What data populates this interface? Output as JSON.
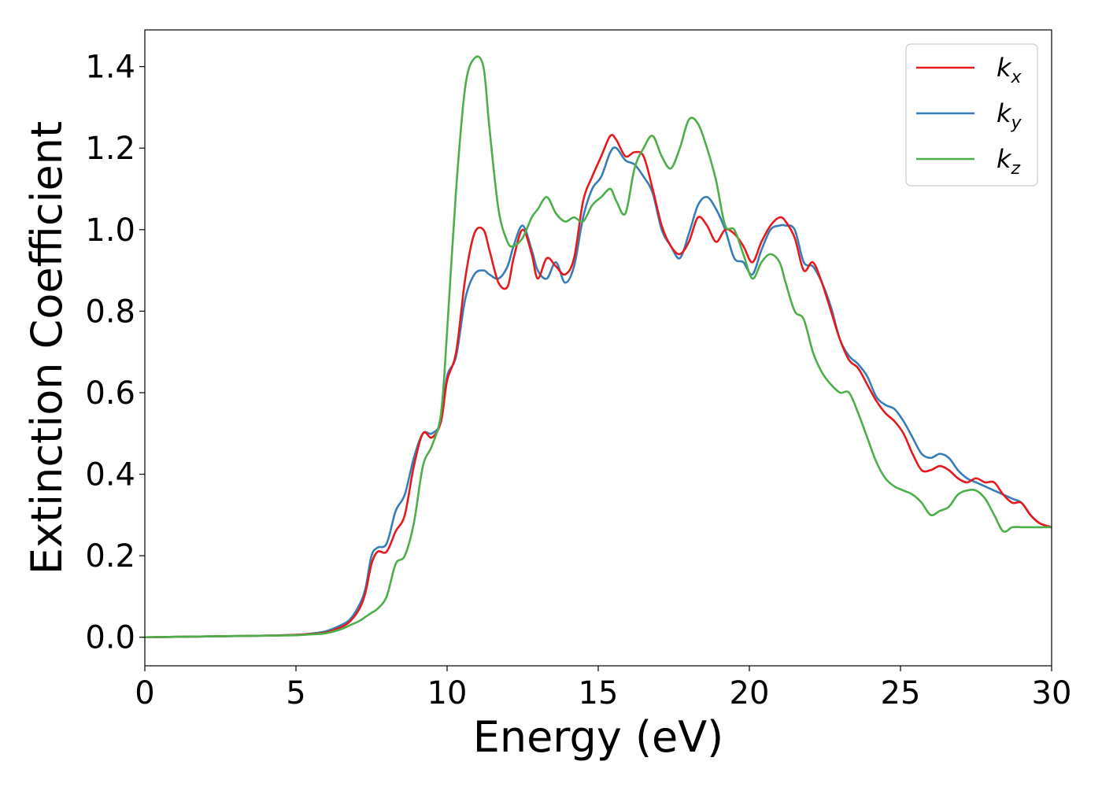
{
  "chart_data": {
    "type": "line",
    "xlabel": "Energy (eV)",
    "ylabel": "Extinction Coefficient",
    "xlim": [
      0,
      30
    ],
    "ylim": [
      -0.07,
      1.49
    ],
    "x_ticks": [
      0,
      5,
      10,
      15,
      20,
      25,
      30
    ],
    "x_tick_labels": [
      "0",
      "5",
      "10",
      "15",
      "20",
      "25",
      "30"
    ],
    "y_ticks": [
      0.0,
      0.2,
      0.4,
      0.6,
      0.8,
      1.0,
      1.2,
      1.4
    ],
    "y_tick_labels": [
      "0.0",
      "0.2",
      "0.4",
      "0.6",
      "0.8",
      "1.0",
      "1.2",
      "1.4"
    ],
    "grid": false,
    "legend_position": "top-right",
    "series": [
      {
        "name": "k",
        "subscript": "x",
        "color": "#e41a1c",
        "x": [
          0,
          1,
          2,
          3,
          4,
          5,
          5.5,
          6,
          6.5,
          6.8,
          7.1,
          7.3,
          7.5,
          7.7,
          8.0,
          8.3,
          8.6,
          8.9,
          9.2,
          9.5,
          9.8,
          10.0,
          10.3,
          10.6,
          10.9,
          11.2,
          11.4,
          11.7,
          12.0,
          12.2,
          12.5,
          12.8,
          13.0,
          13.3,
          13.6,
          13.9,
          14.2,
          14.5,
          14.8,
          15.1,
          15.4,
          15.6,
          15.9,
          16.2,
          16.5,
          16.8,
          17.1,
          17.4,
          17.7,
          18.0,
          18.3,
          18.6,
          18.9,
          19.2,
          19.5,
          19.8,
          20.1,
          20.4,
          20.7,
          21.0,
          21.2,
          21.5,
          21.8,
          22.1,
          22.4,
          22.7,
          23.0,
          23.3,
          23.6,
          23.9,
          24.2,
          24.5,
          24.8,
          25.1,
          25.4,
          25.7,
          26.0,
          26.3,
          26.6,
          26.9,
          27.2,
          27.5,
          27.8,
          28.1,
          28.4,
          28.7,
          29.0,
          29.3,
          29.6,
          30.0
        ],
        "values": [
          0.0,
          0.001,
          0.002,
          0.003,
          0.004,
          0.006,
          0.008,
          0.012,
          0.025,
          0.04,
          0.07,
          0.11,
          0.18,
          0.21,
          0.21,
          0.26,
          0.3,
          0.42,
          0.5,
          0.49,
          0.53,
          0.63,
          0.7,
          0.88,
          0.99,
          1.0,
          0.95,
          0.87,
          0.86,
          0.93,
          1.0,
          0.94,
          0.88,
          0.93,
          0.91,
          0.89,
          0.93,
          1.07,
          1.13,
          1.18,
          1.23,
          1.22,
          1.18,
          1.19,
          1.18,
          1.1,
          1.01,
          0.96,
          0.94,
          0.97,
          1.03,
          1.01,
          0.97,
          1.0,
          0.99,
          0.96,
          0.92,
          0.97,
          1.01,
          1.03,
          1.02,
          0.98,
          0.9,
          0.92,
          0.87,
          0.8,
          0.73,
          0.68,
          0.66,
          0.62,
          0.58,
          0.55,
          0.53,
          0.5,
          0.45,
          0.41,
          0.41,
          0.42,
          0.41,
          0.39,
          0.38,
          0.39,
          0.38,
          0.38,
          0.35,
          0.33,
          0.33,
          0.3,
          0.28,
          0.27
        ]
      },
      {
        "name": "k",
        "subscript": "y",
        "color": "#377eb8",
        "x": [
          0,
          1,
          2,
          3,
          4,
          5,
          5.5,
          6,
          6.5,
          6.8,
          7.1,
          7.3,
          7.5,
          7.7,
          8.0,
          8.3,
          8.6,
          8.9,
          9.2,
          9.5,
          9.8,
          10.0,
          10.3,
          10.6,
          10.9,
          11.2,
          11.4,
          11.7,
          12.0,
          12.2,
          12.5,
          12.8,
          13.0,
          13.3,
          13.6,
          13.9,
          14.2,
          14.5,
          14.8,
          15.1,
          15.4,
          15.6,
          15.9,
          16.2,
          16.5,
          16.8,
          17.1,
          17.4,
          17.7,
          18.0,
          18.3,
          18.6,
          18.9,
          19.2,
          19.5,
          19.8,
          20.1,
          20.4,
          20.7,
          21.0,
          21.2,
          21.5,
          21.8,
          22.1,
          22.4,
          22.7,
          23.0,
          23.3,
          23.6,
          23.9,
          24.2,
          24.5,
          24.8,
          25.1,
          25.4,
          25.7,
          26.0,
          26.3,
          26.6,
          26.9,
          27.2,
          27.5,
          27.8,
          28.1,
          28.4,
          28.7,
          29.0,
          29.3,
          29.6,
          30.0
        ],
        "values": [
          0.0,
          0.001,
          0.002,
          0.003,
          0.004,
          0.006,
          0.009,
          0.015,
          0.03,
          0.045,
          0.08,
          0.12,
          0.2,
          0.22,
          0.23,
          0.31,
          0.35,
          0.44,
          0.5,
          0.5,
          0.53,
          0.64,
          0.69,
          0.83,
          0.89,
          0.9,
          0.89,
          0.88,
          0.91,
          0.96,
          1.01,
          0.95,
          0.9,
          0.88,
          0.92,
          0.87,
          0.91,
          1.03,
          1.1,
          1.13,
          1.19,
          1.2,
          1.17,
          1.16,
          1.13,
          1.09,
          1.0,
          0.96,
          0.93,
          0.99,
          1.06,
          1.08,
          1.05,
          1.0,
          0.93,
          0.92,
          0.89,
          0.95,
          1.0,
          1.01,
          1.01,
          1.0,
          0.92,
          0.91,
          0.87,
          0.81,
          0.73,
          0.69,
          0.67,
          0.64,
          0.59,
          0.57,
          0.56,
          0.53,
          0.49,
          0.45,
          0.44,
          0.45,
          0.44,
          0.41,
          0.39,
          0.38,
          0.37,
          0.36,
          0.35,
          0.34,
          0.33,
          0.3,
          0.28,
          0.27
        ]
      },
      {
        "name": "k",
        "subscript": "z",
        "color": "#4daf4a",
        "x": [
          0,
          1,
          2,
          3,
          4,
          5,
          5.5,
          6,
          6.5,
          6.8,
          7.1,
          7.3,
          7.5,
          7.7,
          8.0,
          8.3,
          8.6,
          8.9,
          9.2,
          9.5,
          9.8,
          10.0,
          10.3,
          10.6,
          10.9,
          11.2,
          11.4,
          11.7,
          12.0,
          12.2,
          12.5,
          12.8,
          13.0,
          13.3,
          13.6,
          13.9,
          14.2,
          14.5,
          14.8,
          15.1,
          15.4,
          15.6,
          15.9,
          16.2,
          16.5,
          16.8,
          17.1,
          17.4,
          17.7,
          18.0,
          18.3,
          18.6,
          18.9,
          19.2,
          19.5,
          19.8,
          20.1,
          20.4,
          20.7,
          21.0,
          21.2,
          21.5,
          21.8,
          22.1,
          22.4,
          22.7,
          23.0,
          23.3,
          23.6,
          23.9,
          24.2,
          24.5,
          24.8,
          25.1,
          25.4,
          25.7,
          26.0,
          26.3,
          26.6,
          26.9,
          27.2,
          27.5,
          27.8,
          28.1,
          28.4,
          28.7,
          29.0,
          29.3,
          29.6,
          30.0
        ],
        "values": [
          0.0,
          0.001,
          0.002,
          0.003,
          0.004,
          0.005,
          0.007,
          0.01,
          0.02,
          0.03,
          0.04,
          0.05,
          0.06,
          0.07,
          0.1,
          0.18,
          0.2,
          0.28,
          0.42,
          0.47,
          0.55,
          0.75,
          1.1,
          1.35,
          1.42,
          1.4,
          1.25,
          1.05,
          0.97,
          0.96,
          0.98,
          1.03,
          1.05,
          1.08,
          1.04,
          1.02,
          1.03,
          1.02,
          1.06,
          1.08,
          1.1,
          1.07,
          1.04,
          1.15,
          1.2,
          1.23,
          1.18,
          1.15,
          1.2,
          1.27,
          1.26,
          1.2,
          1.12,
          1.01,
          1.0,
          0.94,
          0.88,
          0.92,
          0.94,
          0.92,
          0.87,
          0.8,
          0.78,
          0.7,
          0.65,
          0.62,
          0.6,
          0.6,
          0.55,
          0.49,
          0.43,
          0.39,
          0.37,
          0.36,
          0.35,
          0.33,
          0.3,
          0.31,
          0.32,
          0.35,
          0.36,
          0.36,
          0.34,
          0.3,
          0.26,
          0.27,
          0.27,
          0.27,
          0.27,
          0.27
        ]
      }
    ]
  }
}
